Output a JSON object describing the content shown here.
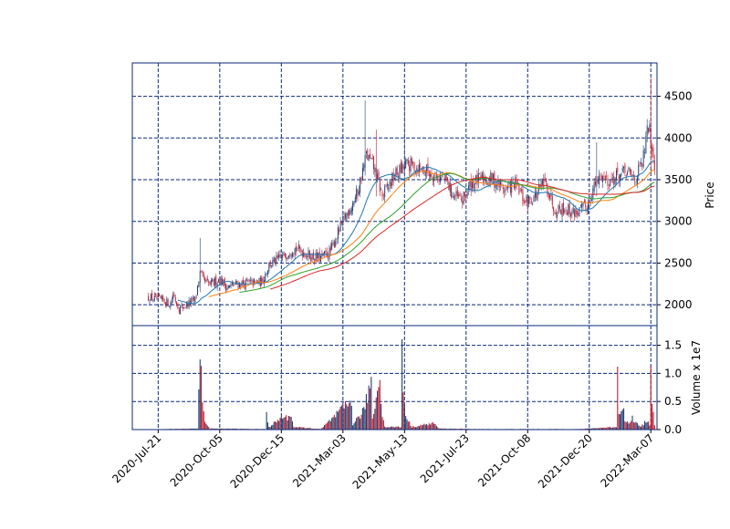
{
  "chart_data": {
    "type": "candlestick",
    "style": {
      "up_color": "#1f3b6e",
      "down_color": "#c0182b",
      "grid_color": "#0b2a78",
      "frame_color": "#0b2a78",
      "ma_colors": [
        "#1f77b4",
        "#ff7f0e",
        "#2ca02c",
        "#d62728"
      ],
      "grid": true,
      "grid_style": "dashed"
    },
    "price_panel": {
      "ylabel": "Price",
      "yticks": [
        2000,
        2500,
        3000,
        3500,
        4000,
        4500
      ],
      "ylim": [
        1750,
        4900
      ]
    },
    "volume_panel": {
      "ylabel": "Volume x 1e7",
      "yticks": [
        "0.0",
        "0.5",
        "1.0",
        "1.5"
      ],
      "ylim": [
        0,
        1.85
      ]
    },
    "x_axis": {
      "tick_labels": [
        "2020-Jul-21",
        "2020-Oct-05",
        "2020-Dec-15",
        "2021-Mar-03",
        "2021-May-13",
        "2021-Jul-23",
        "2021-Oct-08",
        "2021-Dec-20",
        "2022-Mar-07"
      ],
      "tick_index": [
        8,
        58,
        108,
        158,
        208,
        258,
        308,
        358,
        408
      ],
      "xlim": [
        -13,
        413
      ],
      "bar_count": 412
    },
    "price_anchors": [
      [
        0,
        2090
      ],
      [
        12,
        2050
      ],
      [
        18,
        2010
      ],
      [
        20,
        2130
      ],
      [
        25,
        1950
      ],
      [
        32,
        2010
      ],
      [
        38,
        2060
      ],
      [
        42,
        2380
      ],
      [
        45,
        2280
      ],
      [
        50,
        2240
      ],
      [
        58,
        2310
      ],
      [
        64,
        2210
      ],
      [
        72,
        2250
      ],
      [
        82,
        2260
      ],
      [
        92,
        2270
      ],
      [
        98,
        2480
      ],
      [
        110,
        2580
      ],
      [
        117,
        2680
      ],
      [
        124,
        2650
      ],
      [
        132,
        2580
      ],
      [
        140,
        2560
      ],
      [
        148,
        2640
      ],
      [
        155,
        2900
      ],
      [
        160,
        3050
      ],
      [
        170,
        3350
      ],
      [
        177,
        3800
      ],
      [
        183,
        3650
      ],
      [
        190,
        3300
      ],
      [
        200,
        3550
      ],
      [
        210,
        3680
      ],
      [
        222,
        3640
      ],
      [
        232,
        3560
      ],
      [
        242,
        3480
      ],
      [
        248,
        3300
      ],
      [
        255,
        3250
      ],
      [
        262,
        3450
      ],
      [
        272,
        3520
      ],
      [
        280,
        3500
      ],
      [
        290,
        3380
      ],
      [
        298,
        3450
      ],
      [
        306,
        3220
      ],
      [
        315,
        3320
      ],
      [
        322,
        3480
      ],
      [
        330,
        3150
      ],
      [
        338,
        3160
      ],
      [
        344,
        3110
      ],
      [
        350,
        3120
      ],
      [
        356,
        3180
      ],
      [
        362,
        3420
      ],
      [
        368,
        3560
      ],
      [
        374,
        3480
      ],
      [
        380,
        3540
      ],
      [
        388,
        3580
      ],
      [
        395,
        3520
      ],
      [
        401,
        3680
      ],
      [
        406,
        4150
      ],
      [
        411,
        3700
      ]
    ],
    "spikes": [
      {
        "i": 42,
        "high": 2800,
        "low": 2150
      },
      {
        "i": 176,
        "high": 4450,
        "low": 3550
      },
      {
        "i": 185,
        "high": 4100,
        "low": 3300
      },
      {
        "i": 208,
        "high": 4480,
        "low": 3400
      },
      {
        "i": 364,
        "high": 3950,
        "low": 3300
      },
      {
        "i": 408,
        "high": 4720,
        "low": 3600
      }
    ],
    "volume_anchors": [
      [
        0,
        0.005
      ],
      [
        40,
        0.02
      ],
      [
        42,
        1.65
      ],
      [
        43,
        1.0
      ],
      [
        44,
        0.5
      ],
      [
        46,
        0.15
      ],
      [
        50,
        0.02
      ],
      [
        95,
        0.01
      ],
      [
        96,
        0.28
      ],
      [
        98,
        0.05
      ],
      [
        110,
        0.25
      ],
      [
        113,
        0.2
      ],
      [
        116,
        0.3
      ],
      [
        118,
        0.05
      ],
      [
        140,
        0.01
      ],
      [
        165,
        0.53
      ],
      [
        166,
        0.1
      ],
      [
        175,
        0.35
      ],
      [
        181,
        0.92
      ],
      [
        182,
        0.2
      ],
      [
        188,
        0.98
      ],
      [
        190,
        0.3
      ],
      [
        192,
        0.05
      ],
      [
        205,
        0.05
      ],
      [
        206,
        1.57
      ],
      [
        207,
        0.75
      ],
      [
        208,
        0.45
      ],
      [
        210,
        0.2
      ],
      [
        214,
        0.05
      ],
      [
        232,
        0.12
      ],
      [
        236,
        0.02
      ],
      [
        270,
        0.01
      ],
      [
        350,
        0.01
      ],
      [
        380,
        0.05
      ],
      [
        381,
        1.04
      ],
      [
        382,
        0.3
      ],
      [
        385,
        0.47
      ],
      [
        387,
        0.2
      ],
      [
        390,
        0.1
      ],
      [
        393,
        0.22
      ],
      [
        396,
        0.12
      ],
      [
        400,
        0.05
      ],
      [
        405,
        0.18
      ],
      [
        407,
        0.1
      ],
      [
        408,
        1.5
      ],
      [
        409,
        0.5
      ],
      [
        411,
        0.08
      ]
    ],
    "moving_averages": [
      5,
      10,
      15,
      20
    ]
  }
}
